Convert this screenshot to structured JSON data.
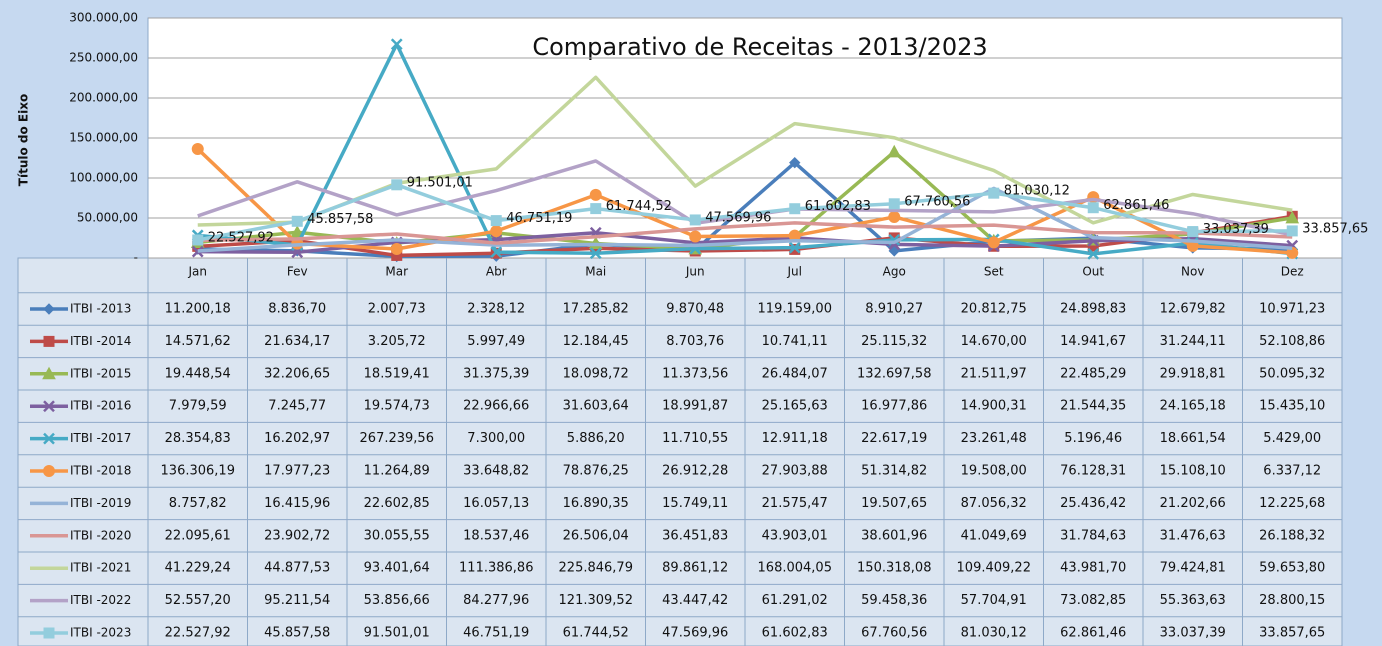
{
  "chart_data": {
    "type": "line",
    "title": "Comparativo de Receitas - 2013/2023",
    "y_label": "Título do Eixo",
    "categories": [
      "Jan",
      "Fev",
      "Mar",
      "Abr",
      "Mai",
      "Jun",
      "Jul",
      "Ago",
      "Set",
      "Out",
      "Nov",
      "Dez"
    ],
    "ylim": [
      0,
      300000
    ],
    "yticks": [
      {
        "value": 0,
        "label": "-"
      },
      {
        "value": 50000,
        "label": "50.000,00"
      },
      {
        "value": 100000,
        "label": "100.000,00"
      },
      {
        "value": 150000,
        "label": "150.000,00"
      },
      {
        "value": 200000,
        "label": "200.000,00"
      },
      {
        "value": 250000,
        "label": "250.000,00"
      },
      {
        "value": 300000,
        "label": "300.000,00"
      }
    ],
    "grid": true,
    "data_table": true,
    "series": [
      {
        "name": "ITBI -2013",
        "color": "#4a7ebb",
        "values": [
          11200.18,
          8836.7,
          2007.73,
          2328.12,
          17285.82,
          9870.48,
          119159,
          8910.27,
          20812.75,
          24898.83,
          12679.82,
          10971.23
        ],
        "value_labels": [
          "11.200,18",
          "8.836,70",
          "2.007,73",
          "2.328,12",
          "17.285,82",
          "9.870,48",
          "119.159,00",
          "8.910,27",
          "20.812,75",
          "24.898,83",
          "12.679,82",
          "10.971,23"
        ]
      },
      {
        "name": "ITBI -2014",
        "color": "#be4b48",
        "values": [
          14571.62,
          21634.17,
          3205.72,
          5997.49,
          12184.45,
          8703.76,
          10741.11,
          25115.32,
          14670,
          14941.67,
          31244.11,
          52108.86
        ],
        "value_labels": [
          "14.571,62",
          "21.634,17",
          "3.205,72",
          "5.997,49",
          "12.184,45",
          "8.703,76",
          "10.741,11",
          "25.115,32",
          "14.670,00",
          "14.941,67",
          "31.244,11",
          "52.108,86"
        ]
      },
      {
        "name": "ITBI -2015",
        "color": "#98b954",
        "values": [
          19448.54,
          32206.65,
          18519.41,
          31375.39,
          18098.72,
          11373.56,
          26484.07,
          132697.58,
          21511.97,
          22485.29,
          29918.81,
          50095.32
        ],
        "value_labels": [
          "19.448,54",
          "32.206,65",
          "18.519,41",
          "31.375,39",
          "18.098,72",
          "11.373,56",
          "26.484,07",
          "132.697,58",
          "21.511,97",
          "22.485,29",
          "29.918,81",
          "50.095,32"
        ]
      },
      {
        "name": "ITBI -2016",
        "color": "#7d60a0",
        "values": [
          7979.59,
          7245.77,
          19574.73,
          22966.66,
          31603.64,
          18991.87,
          25165.63,
          16977.86,
          14900.31,
          21544.35,
          24165.18,
          15435.1
        ],
        "value_labels": [
          "7.979,59",
          "7.245,77",
          "19.574,73",
          "22.966,66",
          "31.603,64",
          "18.991,87",
          "25.165,63",
          "16.977,86",
          "14.900,31",
          "21.544,35",
          "24.165,18",
          "15.435,10"
        ]
      },
      {
        "name": "ITBI -2017",
        "color": "#46aac5",
        "values": [
          28354.83,
          16202.97,
          267239.56,
          7300,
          5886.2,
          11710.55,
          12911.18,
          22617.19,
          23261.48,
          5196.46,
          18661.54,
          5429
        ],
        "value_labels": [
          "28.354,83",
          "16.202,97",
          "267.239,56",
          "7.300,00",
          "5.886,20",
          "11.710,55",
          "12.911,18",
          "22.617,19",
          "23.261,48",
          "5.196,46",
          "18.661,54",
          "5.429,00"
        ]
      },
      {
        "name": "ITBI -2018",
        "color": "#f79646",
        "values": [
          136306.19,
          17977.23,
          11264.89,
          33648.82,
          78876.25,
          26912.28,
          27903.88,
          51314.82,
          19508,
          76128.31,
          15108.1,
          6337.12
        ],
        "value_labels": [
          "136.306,19",
          "17.977,23",
          "11.264,89",
          "33.648,82",
          "78.876,25",
          "26.912,28",
          "27.903,88",
          "51.314,82",
          "19.508,00",
          "76.128,31",
          "15.108,10",
          "6.337,12"
        ]
      },
      {
        "name": "ITBI -2019",
        "color": "#95b3d7",
        "values": [
          8757.82,
          16415.96,
          22602.85,
          16057.13,
          16890.35,
          15749.11,
          21575.47,
          19507.65,
          87056.32,
          25436.42,
          21202.66,
          12225.68
        ],
        "value_labels": [
          "8.757,82",
          "16.415,96",
          "22.602,85",
          "16.057,13",
          "16.890,35",
          "15.749,11",
          "21.575,47",
          "19.507,65",
          "87.056,32",
          "25.436,42",
          "21.202,66",
          "12.225,68"
        ]
      },
      {
        "name": "ITBI -2020",
        "color": "#d99694",
        "values": [
          22095.61,
          23902.72,
          30055.55,
          18537.46,
          26506.04,
          36451.83,
          43903.01,
          38601.96,
          41049.69,
          31784.63,
          31476.63,
          26188.32
        ],
        "value_labels": [
          "22.095,61",
          "23.902,72",
          "30.055,55",
          "18.537,46",
          "26.506,04",
          "36.451,83",
          "43.903,01",
          "38.601,96",
          "41.049,69",
          "31.784,63",
          "31.476,63",
          "26.188,32"
        ]
      },
      {
        "name": "ITBI -2021",
        "color": "#c3d69b",
        "values": [
          41229.24,
          44877.53,
          93401.64,
          111386.86,
          225846.79,
          89861.12,
          168004.05,
          150318.08,
          109409.22,
          43981.7,
          79424.81,
          59653.8
        ],
        "value_labels": [
          "41.229,24",
          "44.877,53",
          "93.401,64",
          "111.386,86",
          "225.846,79",
          "89.861,12",
          "168.004,05",
          "150.318,08",
          "109.409,22",
          "43.981,70",
          "79.424,81",
          "59.653,80"
        ]
      },
      {
        "name": "ITBI -2022",
        "color": "#b3a2c7",
        "values": [
          52557.2,
          95211.54,
          53856.66,
          84277.96,
          121309.52,
          43447.42,
          61291.02,
          59458.36,
          57704.91,
          73082.85,
          55363.63,
          28800.15
        ],
        "value_labels": [
          "52.557,20",
          "95.211,54",
          "53.856,66",
          "84.277,96",
          "121.309,52",
          "43.447,42",
          "61.291,02",
          "59.458,36",
          "57.704,91",
          "73.082,85",
          "55.363,63",
          "28.800,15"
        ]
      },
      {
        "name": "ITBI -2023",
        "color": "#93cddd",
        "show_labels": true,
        "values": [
          22527.92,
          45857.58,
          91501.01,
          46751.19,
          61744.52,
          47569.96,
          61602.83,
          67760.56,
          81030.12,
          62861.46,
          33037.39,
          33857.65
        ],
        "value_labels": [
          "22.527,92",
          "45.857,58",
          "91.501,01",
          "46.751,19",
          "61.744,52",
          "47.569,96",
          "61.602,83",
          "67.760,56",
          "81.030,12",
          "62.861,46",
          "33.037,39",
          "33.857,65"
        ]
      }
    ]
  }
}
